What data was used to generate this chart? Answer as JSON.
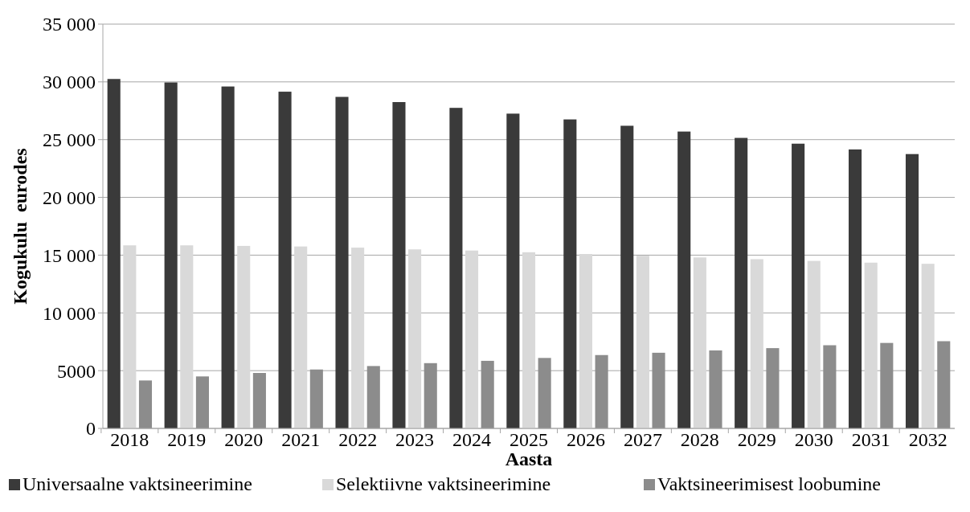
{
  "chart_data": {
    "type": "bar",
    "xlabel": "Aasta",
    "ylabel": "Kogukulu  eurodes",
    "categories": [
      "2018",
      "2019",
      "2020",
      "2021",
      "2022",
      "2023",
      "2024",
      "2025",
      "2026",
      "2027",
      "2028",
      "2029",
      "2030",
      "2031",
      "2032"
    ],
    "series": [
      {
        "name": "Universaalne vaktsineerimine",
        "color": "#3a3a3a",
        "values": [
          30250,
          29950,
          29600,
          29150,
          28700,
          28250,
          27750,
          27250,
          26750,
          26200,
          25700,
          25150,
          24650,
          24150,
          23750
        ]
      },
      {
        "name": "Selektiivne vaktsineerimine",
        "color": "#d9d9d9",
        "values": [
          15850,
          15850,
          15800,
          15750,
          15650,
          15500,
          15400,
          15250,
          15100,
          14950,
          14800,
          14650,
          14500,
          14350,
          14250
        ]
      },
      {
        "name": "Vaktsineerimisest loobumine",
        "color": "#8c8c8c",
        "values": [
          4150,
          4500,
          4800,
          5100,
          5400,
          5650,
          5850,
          6100,
          6350,
          6550,
          6750,
          6950,
          7200,
          7400,
          7550
        ]
      }
    ],
    "ylim": [
      0,
      35000
    ],
    "yticks": [
      0,
      5000,
      {
        "value": 10000,
        "label": "10 000"
      },
      {
        "value": 15000,
        "label": "15 000"
      },
      {
        "value": 20000,
        "label": "20 000"
      },
      {
        "value": 25000,
        "label": "25 000"
      },
      {
        "value": 30000,
        "label": "30 000"
      },
      {
        "value": 35000,
        "label": "35 000"
      }
    ],
    "grid": "y",
    "legend": "bottom"
  }
}
